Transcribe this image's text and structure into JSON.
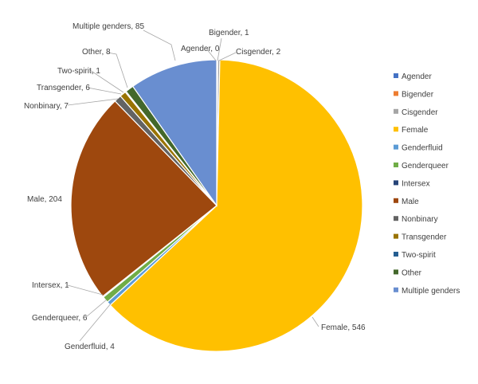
{
  "chart_data": {
    "type": "pie",
    "title": "",
    "legend_position": "right",
    "slices": [
      {
        "label": "Agender",
        "value": 0,
        "color": "#4472C4"
      },
      {
        "label": "Bigender",
        "value": 1,
        "color": "#ED7D31"
      },
      {
        "label": "Cisgender",
        "value": 2,
        "color": "#A5A5A5"
      },
      {
        "label": "Female",
        "value": 546,
        "color": "#FFC000"
      },
      {
        "label": "Genderfluid",
        "value": 4,
        "color": "#5B9BD5"
      },
      {
        "label": "Genderqueer",
        "value": 6,
        "color": "#70AD47"
      },
      {
        "label": "Intersex",
        "value": 1,
        "color": "#264478"
      },
      {
        "label": "Male",
        "value": 204,
        "color": "#9E480E"
      },
      {
        "label": "Nonbinary",
        "value": 7,
        "color": "#636363"
      },
      {
        "label": "Transgender",
        "value": 6,
        "color": "#997300"
      },
      {
        "label": "Two-spirit",
        "value": 1,
        "color": "#255E91"
      },
      {
        "label": "Other",
        "value": 8,
        "color": "#43682B"
      },
      {
        "label": "Multiple genders",
        "value": 85,
        "color": "#698ED0"
      }
    ],
    "data_labels": [
      "Agender, 0",
      "Bigender, 1",
      "Cisgender, 2",
      "Female, 546",
      "Genderfluid, 4",
      "Genderqueer, 6",
      "Intersex, 1",
      "Male, 204",
      "Nonbinary, 7",
      "Transgender, 6",
      "Two-spirit, 1",
      "Other, 8",
      "Multiple genders, 85"
    ]
  }
}
